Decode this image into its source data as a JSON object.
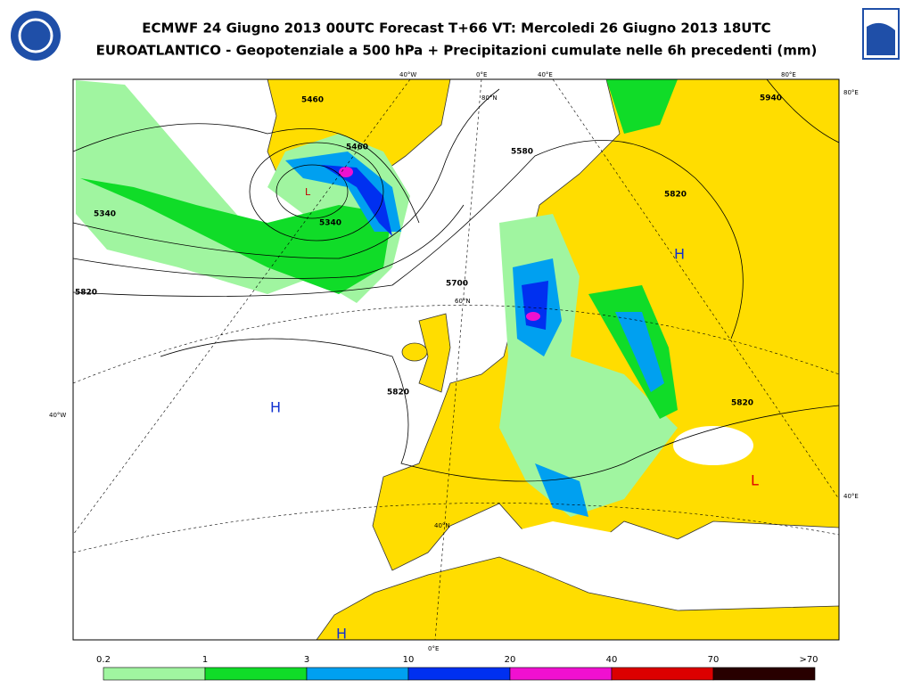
{
  "header": {
    "title_line1": "ECMWF 24 Giugno 2013 00UTC Forecast T+66 VT: Mercoledi 26 Giugno 2013 18UTC",
    "title_line2": "EUROATLANTICO - Geopotenziale a 500 hPa + Precipitazioni cumulate nelle 6h precedenti (mm)"
  },
  "map": {
    "grid_labels": [
      "40°W",
      "0°E",
      "40°E",
      "80°E",
      "80°E",
      "40°E",
      "40°W",
      "0°E",
      "80°N",
      "60°N",
      "40°N"
    ],
    "contour_labels": [
      "5460",
      "5460",
      "5340",
      "5340",
      "5580",
      "5820",
      "5820",
      "5700",
      "5820",
      "5820",
      "5940"
    ],
    "pressure_centers": [
      "H",
      "H",
      "H",
      "L",
      "L"
    ]
  },
  "legend": {
    "labels": [
      "0.2",
      "1",
      "3",
      "10",
      "20",
      "40",
      "70",
      ">70"
    ],
    "colors": [
      "#a0f5a0",
      "#10dc28",
      "#00a0f0",
      "#0030f0",
      "#f010d0",
      "#dc0000",
      "#280000"
    ]
  }
}
